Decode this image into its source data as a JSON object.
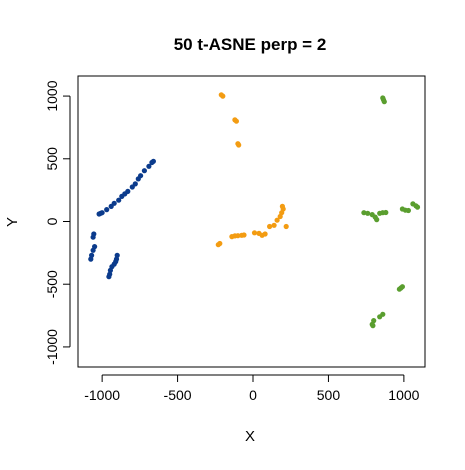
{
  "chart_data": {
    "type": "scatter",
    "title": "50 t-ASNE perp = 2",
    "xlabel": "X",
    "ylabel": "Y",
    "xlim": [
      -1160,
      1140
    ],
    "ylim": [
      -1160,
      1160
    ],
    "xticks": [
      -1000,
      -500,
      0,
      500,
      1000
    ],
    "yticks": [
      -1000,
      -500,
      0,
      500,
      1000
    ],
    "x_tick_labels": [
      "-1000",
      "-500",
      "0",
      "500",
      "1000"
    ],
    "y_tick_labels": [
      "-1000",
      "-500",
      "0",
      "500",
      "1000"
    ],
    "grid": false,
    "legend": "none",
    "series": [
      {
        "color": "#0b3b8c",
        "points": [
          [
            -660,
            480
          ],
          [
            -670,
            470
          ],
          [
            -690,
            440
          ],
          [
            -720,
            405
          ],
          [
            -745,
            365
          ],
          [
            -760,
            340
          ],
          [
            -780,
            300
          ],
          [
            -800,
            275
          ],
          [
            -830,
            240
          ],
          [
            -850,
            220
          ],
          [
            -870,
            200
          ],
          [
            -890,
            170
          ],
          [
            -920,
            145
          ],
          [
            -940,
            120
          ],
          [
            -970,
            95
          ],
          [
            -1000,
            70
          ],
          [
            -1010,
            65
          ],
          [
            -1020,
            60
          ],
          [
            -1055,
            -100
          ],
          [
            -1060,
            -125
          ],
          [
            -1050,
            -200
          ],
          [
            -1060,
            -230
          ],
          [
            -1070,
            -270
          ],
          [
            -1075,
            -300
          ],
          [
            -900,
            -270
          ],
          [
            -905,
            -300
          ],
          [
            -910,
            -320
          ],
          [
            -920,
            -340
          ],
          [
            -935,
            -360
          ],
          [
            -945,
            -390
          ],
          [
            -950,
            -420
          ],
          [
            -955,
            -440
          ]
        ]
      },
      {
        "color": "#f39c12",
        "points": [
          [
            -210,
            1010
          ],
          [
            -200,
            1000
          ],
          [
            -120,
            810
          ],
          [
            -110,
            800
          ],
          [
            -100,
            620
          ],
          [
            -95,
            610
          ],
          [
            -230,
            -185
          ],
          [
            -220,
            -175
          ],
          [
            -140,
            -120
          ],
          [
            -120,
            -115
          ],
          [
            -100,
            -113
          ],
          [
            -75,
            -110
          ],
          [
            -60,
            -108
          ],
          [
            10,
            -90
          ],
          [
            40,
            -95
          ],
          [
            60,
            -110
          ],
          [
            80,
            -100
          ],
          [
            110,
            -40
          ],
          [
            140,
            -30
          ],
          [
            160,
            10
          ],
          [
            180,
            40
          ],
          [
            190,
            70
          ],
          [
            200,
            100
          ],
          [
            195,
            120
          ],
          [
            220,
            -40
          ]
        ]
      },
      {
        "color": "#5a9e2f",
        "points": [
          [
            860,
            985
          ],
          [
            865,
            970
          ],
          [
            870,
            955
          ],
          [
            735,
            70
          ],
          [
            760,
            65
          ],
          [
            790,
            55
          ],
          [
            810,
            35
          ],
          [
            820,
            15
          ],
          [
            840,
            65
          ],
          [
            860,
            70
          ],
          [
            880,
            72
          ],
          [
            990,
            100
          ],
          [
            1010,
            90
          ],
          [
            1030,
            88
          ],
          [
            1060,
            140
          ],
          [
            1080,
            125
          ],
          [
            1090,
            115
          ],
          [
            970,
            -540
          ],
          [
            980,
            -530
          ],
          [
            990,
            -520
          ],
          [
            860,
            -740
          ],
          [
            840,
            -760
          ],
          [
            800,
            -790
          ],
          [
            790,
            -820
          ],
          [
            795,
            -830
          ]
        ]
      }
    ]
  }
}
